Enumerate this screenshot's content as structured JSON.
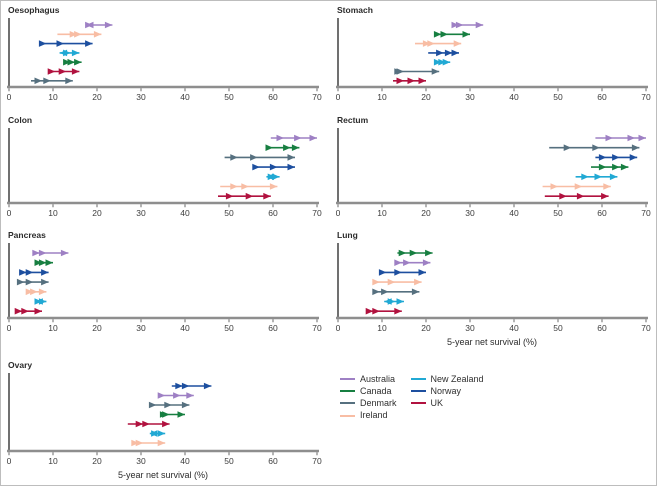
{
  "figure": {
    "xlabel": "5-year net survival (%)",
    "xlim": [
      0,
      70
    ],
    "ticks": [
      0,
      10,
      20,
      30,
      40,
      50,
      60,
      70
    ],
    "axis_line_color": "#8e8e8e",
    "yaxis_line_color": "#4d4d4d",
    "tick_text_color": "#3c3c3c",
    "title_text_color": "#2b2b2b",
    "colors": {
      "Australia": "#9e80c4",
      "Canada": "#177f41",
      "Denmark": "#56707f",
      "Ireland": "#f8bda4",
      "New Zealand": "#21a9d4",
      "Norway": "#1d4f9f",
      "UK": "#b1123f"
    },
    "legend": {
      "columns": [
        [
          "Australia",
          "Canada",
          "Denmark",
          "Ireland"
        ],
        [
          "New Zealand",
          "Norway",
          "UK"
        ]
      ]
    }
  },
  "chart_data": {
    "type": "line",
    "note": "Each row is a time-trend arrow: values are successive 5-year net survival (%) estimates; arrowheads mark each successive period value, pointing in the direction of change.",
    "xlabel": "5-year net survival (%)",
    "xlim": [
      0,
      70
    ],
    "panels": [
      {
        "id": "oesophagus",
        "title": "Oesophagus",
        "xlabel": "",
        "rows": [
          {
            "country": "Australia",
            "values": [
              18.5,
              17.5,
              19,
              23.5
            ]
          },
          {
            "country": "Ireland",
            "values": [
              11,
              15.5,
              16.5,
              21
            ]
          },
          {
            "country": "Norway",
            "values": [
              7,
              8.5,
              12.5,
              19
            ]
          },
          {
            "country": "New Zealand",
            "values": [
              13,
              11.5,
              14,
              16
            ]
          },
          {
            "country": "Canada",
            "values": [
              13,
              14,
              15,
              16.5
            ]
          },
          {
            "country": "UK",
            "values": [
              9.5,
              10.5,
              13,
              16
            ]
          },
          {
            "country": "Denmark",
            "values": [
              5,
              7.5,
              9.5,
              14.5
            ]
          }
        ]
      },
      {
        "id": "stomach",
        "title": "Stomach",
        "xlabel": "",
        "rows": [
          {
            "country": "Australia",
            "values": [
              26,
              27.5,
              28.5,
              33
            ]
          },
          {
            "country": "Canada",
            "values": [
              22,
              23.5,
              25,
              30
            ]
          },
          {
            "country": "Ireland",
            "values": [
              17.5,
              21,
              22,
              28
            ]
          },
          {
            "country": "Norway",
            "values": [
              20.5,
              24,
              26,
              27.5
            ]
          },
          {
            "country": "New Zealand",
            "values": [
              22.5,
              23.5,
              24.5,
              25.5
            ]
          },
          {
            "country": "Denmark",
            "values": [
              13,
              14.5,
              15,
              23
            ]
          },
          {
            "country": "UK",
            "values": [
              12.5,
              15,
              17.5,
              20
            ]
          }
        ]
      },
      {
        "id": "colon",
        "title": "Colon",
        "xlabel": "",
        "rows": [
          {
            "country": "Australia",
            "values": [
              59.5,
              62.5,
              66.5,
              70
            ]
          },
          {
            "country": "Canada",
            "values": [
              58.5,
              60,
              64,
              66
            ]
          },
          {
            "country": "Denmark",
            "values": [
              49,
              52,
              56.5,
              65
            ]
          },
          {
            "country": "Norway",
            "values": [
              55.5,
              57,
              61,
              65
            ]
          },
          {
            "country": "New Zealand",
            "values": [
              59.5,
              58.5,
              60.5,
              61.5
            ]
          },
          {
            "country": "Ireland",
            "values": [
              48,
              52,
              54.5,
              61
            ]
          },
          {
            "country": "UK",
            "values": [
              47.5,
              51,
              55.5,
              59.5
            ]
          }
        ]
      },
      {
        "id": "rectum",
        "title": "Rectum",
        "xlabel": "",
        "rows": [
          {
            "country": "Australia",
            "values": [
              58.5,
              62.5,
              67.5,
              70
            ]
          },
          {
            "country": "Denmark",
            "values": [
              48,
              53,
              59.5,
              68.5
            ]
          },
          {
            "country": "Norway",
            "values": [
              58.5,
              61,
              64,
              68
            ]
          },
          {
            "country": "Canada",
            "values": [
              57.5,
              61,
              64,
              66
            ]
          },
          {
            "country": "New Zealand",
            "values": [
              54,
              57,
              60,
              63.5
            ]
          },
          {
            "country": "Ireland",
            "values": [
              46.5,
              50,
              55.5,
              62
            ]
          },
          {
            "country": "UK",
            "values": [
              47,
              52,
              56,
              61.5
            ]
          }
        ]
      },
      {
        "id": "pancreas",
        "title": "Pancreas",
        "xlabel": "",
        "rows": [
          {
            "country": "Australia",
            "values": [
              6,
              7,
              8.5,
              13.5
            ]
          },
          {
            "country": "Canada",
            "values": [
              6,
              7.5,
              8.5,
              10
            ]
          },
          {
            "country": "Norway",
            "values": [
              3,
              4,
              5.5,
              9
            ]
          },
          {
            "country": "Denmark",
            "values": [
              2.5,
              3.5,
              5.5,
              9
            ]
          },
          {
            "country": "Ireland",
            "values": [
              4,
              5.5,
              6.5,
              8.5
            ]
          },
          {
            "country": "New Zealand",
            "values": [
              6.5,
              6,
              7.5,
              8.5
            ]
          },
          {
            "country": "UK",
            "values": [
              2,
              3,
              4.5,
              7.5
            ]
          }
        ]
      },
      {
        "id": "lung",
        "title": "Lung",
        "xlabel": "5-year net survival (%)",
        "rows": [
          {
            "country": "Canada",
            "values": [
              13.5,
              15.5,
              18,
              21.5
            ]
          },
          {
            "country": "Australia",
            "values": [
              13,
              14.5,
              16.5,
              21
            ]
          },
          {
            "country": "Norway",
            "values": [
              10,
              11,
              14.5,
              20
            ]
          },
          {
            "country": "Ireland",
            "values": [
              8,
              9.5,
              13,
              19
            ]
          },
          {
            "country": "Denmark",
            "values": [
              8,
              9.5,
              11.5,
              18.5
            ]
          },
          {
            "country": "New Zealand",
            "values": [
              11,
              10.5,
              13,
              15
            ]
          },
          {
            "country": "UK",
            "values": [
              7,
              8,
              9.5,
              14.5
            ]
          }
        ]
      },
      {
        "id": "ovary",
        "title": "Ovary",
        "xlabel": "5-year net survival (%)",
        "rows": [
          {
            "country": "Norway",
            "values": [
              37,
              39.5,
              41,
              46
            ]
          },
          {
            "country": "Australia",
            "values": [
              34.5,
              35.5,
              39,
              42
            ]
          },
          {
            "country": "Denmark",
            "values": [
              32,
              33.5,
              37,
              41
            ]
          },
          {
            "country": "Canada",
            "values": [
              35,
              36,
              36.5,
              40
            ]
          },
          {
            "country": "UK",
            "values": [
              27,
              30.5,
              32,
              36.5
            ]
          },
          {
            "country": "New Zealand",
            "values": [
              33,
              32,
              34,
              35.5
            ]
          },
          {
            "country": "Ireland",
            "values": [
              28,
              29.5,
              30.5,
              35.5
            ]
          }
        ]
      }
    ]
  }
}
